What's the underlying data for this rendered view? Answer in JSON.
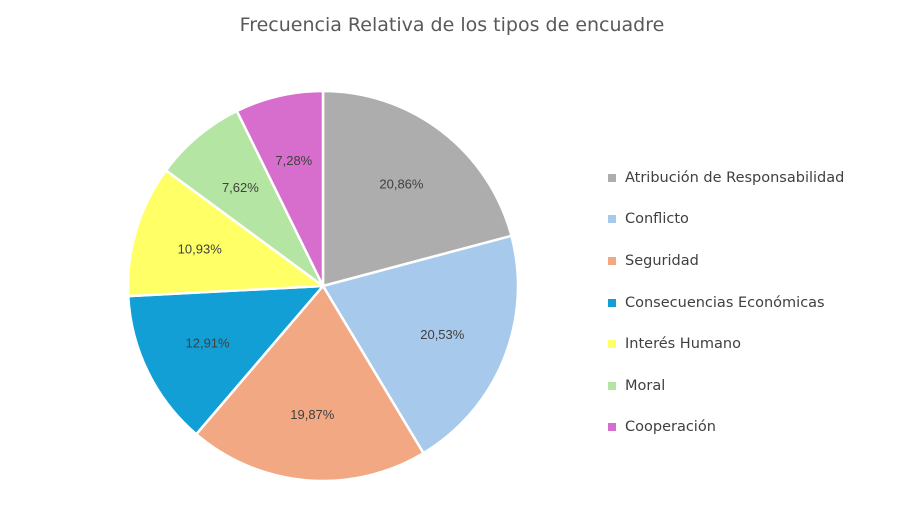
{
  "chart_data": {
    "type": "pie",
    "title": "Frecuencia Relativa de los tipos de encuadre",
    "categories": [
      "Atribución de Responsabilidad",
      "Conflicto",
      "Seguridad",
      "Consecuencias Económicas",
      "Interés Humano",
      "Moral",
      "Cooperación"
    ],
    "values": [
      20.86,
      20.53,
      19.87,
      12.91,
      10.93,
      7.62,
      7.28
    ],
    "value_labels": [
      "20,86%",
      "20,53%",
      "19,87%",
      "12,91%",
      "10,93%",
      "7,62%",
      "7,28%"
    ],
    "colors": [
      "#adadad",
      "#a7c9ec",
      "#f2a983",
      "#119fd6",
      "#ffff66",
      "#b4e5a2",
      "#d76dcc"
    ],
    "legend_placement": "right"
  }
}
